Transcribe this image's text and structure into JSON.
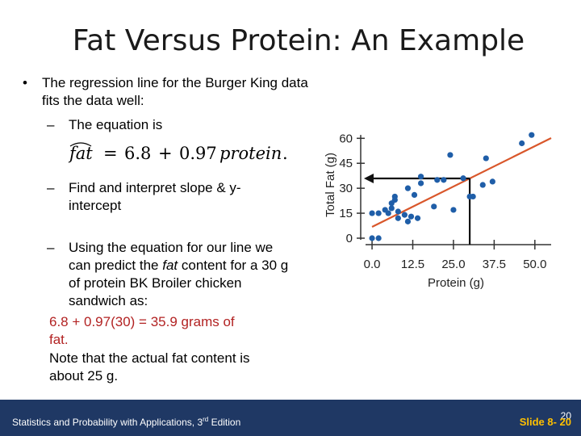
{
  "slide": {
    "title": "Fat Versus Protein: An Example",
    "bullet_main": "The regression line for the Burger King data fits the data well:",
    "sub1": "The equation is",
    "equation": {
      "lhs": "fat",
      "eq": "=",
      "a": "6.8",
      "plus": "+",
      "b": "0.97",
      "var": "protein",
      "period": "."
    },
    "sub2": "Find and interpret slope & y-intercept",
    "sub3": "Using the equation for our line we can predict the",
    "sub3_italic": "fat",
    "sub3_rest": "content for a 30 g of protein BK Broiler chicken sandwich as:",
    "calc_line1": "6.8 + 0.97(30) = 35.9 grams of",
    "calc_line2": "fat.",
    "note_line1": "Note that the actual fat content is",
    "note_line2": "about 25 g."
  },
  "footer": {
    "left_text_pre": "Statistics and Probability with Applications, 3",
    "left_sup": "rd",
    "left_text_post": " Edition",
    "right_text": "Slide 8- 20",
    "page_number": "20"
  },
  "colors": {
    "footer_bg": "#1f3864",
    "footer_accent": "#ffc000",
    "points": "#1f5ea8",
    "line": "#d9572b",
    "red_text": "#b22222"
  },
  "chart_data": {
    "type": "scatter",
    "xlabel": "Protein (g)",
    "ylabel": "Total Fat (g)",
    "xlim": [
      -2,
      55
    ],
    "ylim": [
      0,
      65
    ],
    "x_ticks": [
      "0.0",
      "12.5",
      "25.0",
      "37.5",
      "50.0"
    ],
    "x_tick_values": [
      0,
      12.5,
      25,
      37.5,
      50
    ],
    "y_ticks": [
      "0",
      "15",
      "30",
      "45",
      "60"
    ],
    "y_tick_values": [
      0,
      15,
      30,
      45,
      60
    ],
    "regression": {
      "intercept": 6.8,
      "slope": 0.97
    },
    "annotation": {
      "x": 30,
      "y": 35.9
    },
    "points": [
      [
        0,
        0
      ],
      [
        2,
        0
      ],
      [
        0,
        15
      ],
      [
        2,
        15
      ],
      [
        4,
        17
      ],
      [
        5,
        15
      ],
      [
        6,
        18
      ],
      [
        6,
        21
      ],
      [
        7,
        23
      ],
      [
        7,
        25
      ],
      [
        8,
        12
      ],
      [
        8,
        16
      ],
      [
        10,
        14
      ],
      [
        11,
        30
      ],
      [
        11,
        10
      ],
      [
        12,
        13
      ],
      [
        13,
        26
      ],
      [
        14,
        12
      ],
      [
        15,
        37
      ],
      [
        15,
        33
      ],
      [
        19,
        19
      ],
      [
        20,
        35
      ],
      [
        22,
        35
      ],
      [
        24,
        50
      ],
      [
        25,
        17
      ],
      [
        28,
        36
      ],
      [
        30,
        25
      ],
      [
        31,
        25
      ],
      [
        34,
        32
      ],
      [
        35,
        48
      ],
      [
        37,
        34
      ],
      [
        46,
        57
      ],
      [
        49,
        62
      ]
    ]
  }
}
